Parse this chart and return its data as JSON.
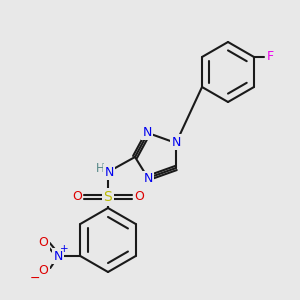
{
  "background_color": "#e8e8e8",
  "bond_color": "#1a1a1a",
  "atom_colors": {
    "N": "#0000ee",
    "O": "#dd0000",
    "S": "#bbbb00",
    "F": "#ee00ee",
    "H": "#558888",
    "C": "#1a1a1a"
  },
  "figsize": [
    3.0,
    3.0
  ],
  "dpi": 100
}
